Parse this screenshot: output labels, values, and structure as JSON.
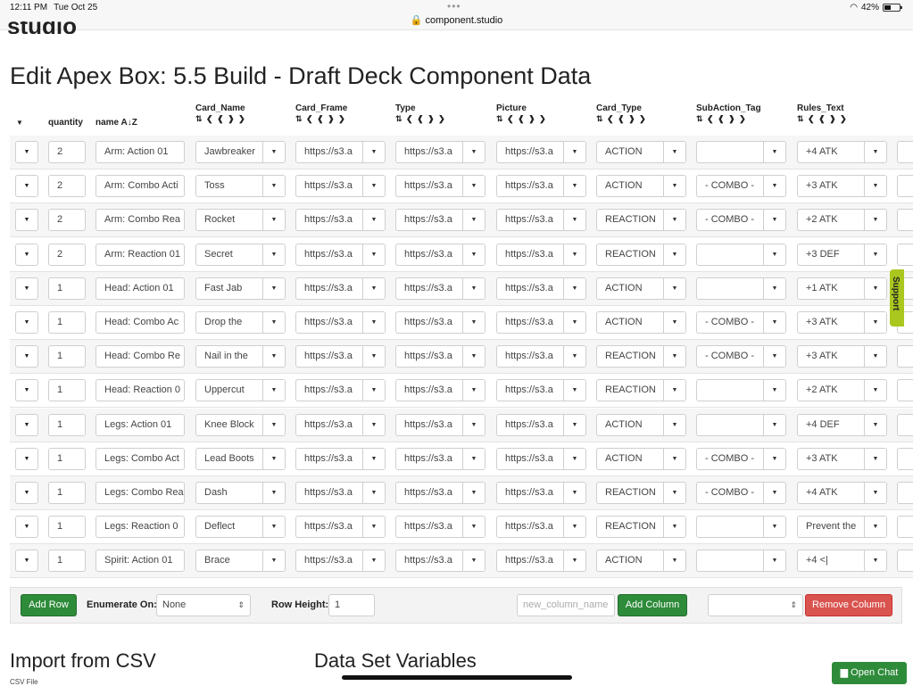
{
  "status_bar": {
    "time": "12:11 PM",
    "date": "Tue Oct 25",
    "url": "component.studio",
    "battery": "42%"
  },
  "page_title": "Edit Apex Box: 5.5 Build - Draft Deck Component Data",
  "logo_text": "studio",
  "columns": {
    "quantity": "quantity",
    "name": "name",
    "card_name": "Card_Name",
    "card_frame": "Card_Frame",
    "type": "Type",
    "picture": "Picture",
    "card_type": "Card_Type",
    "subaction_tag": "SubAction_Tag",
    "rules_text": "Rules_Text",
    "sort_icon": "A↓Z",
    "column_icons": "⇅ ❮ ❰ ❱ ❯"
  },
  "rows": [
    {
      "quantity": "2",
      "name": "Arm: Action 01",
      "card_name": "Jawbreaker",
      "card_frame": "https://s3.a",
      "type": "https://s3.a",
      "picture": "https://s3.a",
      "card_type": "ACTION",
      "subaction_tag": "",
      "rules_text": "+4 ATK"
    },
    {
      "quantity": "2",
      "name": "Arm: Combo Acti",
      "card_name": "Toss",
      "card_frame": "https://s3.a",
      "type": "https://s3.a",
      "picture": "https://s3.a",
      "card_type": "ACTION",
      "subaction_tag": "- COMBO -",
      "rules_text": "+3 ATK"
    },
    {
      "quantity": "2",
      "name": "Arm: Combo Rea",
      "card_name": "Rocket",
      "card_frame": "https://s3.a",
      "type": "https://s3.a",
      "picture": "https://s3.a",
      "card_type": "REACTION",
      "subaction_tag": "- COMBO -",
      "rules_text": "+2 ATK"
    },
    {
      "quantity": "2",
      "name": "Arm: Reaction 01",
      "card_name": "Secret",
      "card_frame": "https://s3.a",
      "type": "https://s3.a",
      "picture": "https://s3.a",
      "card_type": "REACTION",
      "subaction_tag": "",
      "rules_text": "+3 DEF"
    },
    {
      "quantity": "1",
      "name": "Head: Action 01",
      "card_name": "Fast Jab",
      "card_frame": "https://s3.a",
      "type": "https://s3.a",
      "picture": "https://s3.a",
      "card_type": "ACTION",
      "subaction_tag": "",
      "rules_text": "+1 ATK"
    },
    {
      "quantity": "1",
      "name": "Head: Combo Ac",
      "card_name": "Drop the",
      "card_frame": "https://s3.a",
      "type": "https://s3.a",
      "picture": "https://s3.a",
      "card_type": "ACTION",
      "subaction_tag": "- COMBO -",
      "rules_text": "+3 ATK"
    },
    {
      "quantity": "1",
      "name": "Head: Combo Re",
      "card_name": "Nail in the",
      "card_frame": "https://s3.a",
      "type": "https://s3.a",
      "picture": "https://s3.a",
      "card_type": "REACTION",
      "subaction_tag": "- COMBO -",
      "rules_text": "+3 ATK"
    },
    {
      "quantity": "1",
      "name": "Head: Reaction 0",
      "card_name": "Uppercut",
      "card_frame": "https://s3.a",
      "type": "https://s3.a",
      "picture": "https://s3.a",
      "card_type": "REACTION",
      "subaction_tag": "",
      "rules_text": "+2 ATK"
    },
    {
      "quantity": "1",
      "name": "Legs: Action 01",
      "card_name": "Knee Block",
      "card_frame": "https://s3.a",
      "type": "https://s3.a",
      "picture": "https://s3.a",
      "card_type": "ACTION",
      "subaction_tag": "",
      "rules_text": "+4 DEF"
    },
    {
      "quantity": "1",
      "name": "Legs: Combo Act",
      "card_name": "Lead Boots",
      "card_frame": "https://s3.a",
      "type": "https://s3.a",
      "picture": "https://s3.a",
      "card_type": "ACTION",
      "subaction_tag": "- COMBO -",
      "rules_text": "+3 ATK"
    },
    {
      "quantity": "1",
      "name": "Legs: Combo Rea",
      "card_name": "Dash",
      "card_frame": "https://s3.a",
      "type": "https://s3.a",
      "picture": "https://s3.a",
      "card_type": "REACTION",
      "subaction_tag": "- COMBO -",
      "rules_text": "+4 ATK"
    },
    {
      "quantity": "1",
      "name": "Legs: Reaction 0",
      "card_name": "Deflect",
      "card_frame": "https://s3.a",
      "type": "https://s3.a",
      "picture": "https://s3.a",
      "card_type": "REACTION",
      "subaction_tag": "",
      "rules_text": "Prevent the"
    },
    {
      "quantity": "1",
      "name": "Spirit: Action 01",
      "card_name": "Brace",
      "card_frame": "https://s3.a",
      "type": "https://s3.a",
      "picture": "https://s3.a",
      "card_type": "ACTION",
      "subaction_tag": "",
      "rules_text": "+4 <|"
    }
  ],
  "toolbar": {
    "add_row": "Add Row",
    "enumerate_label": "Enumerate On:",
    "enumerate_value": "None",
    "row_height_label": "Row Height:",
    "row_height_value": "1",
    "new_column_placeholder": "new_column_name",
    "add_column": "Add Column",
    "remove_column": "Remove Column"
  },
  "sections": {
    "import_csv": "Import from CSV",
    "csv_file": "CSV File",
    "data_set_variables": "Data Set Variables"
  },
  "support_label": "Support",
  "open_chat": "Open Chat",
  "colors": {
    "green": "#2e8b3a",
    "red": "#d9534f",
    "support": "#a9c71e"
  }
}
